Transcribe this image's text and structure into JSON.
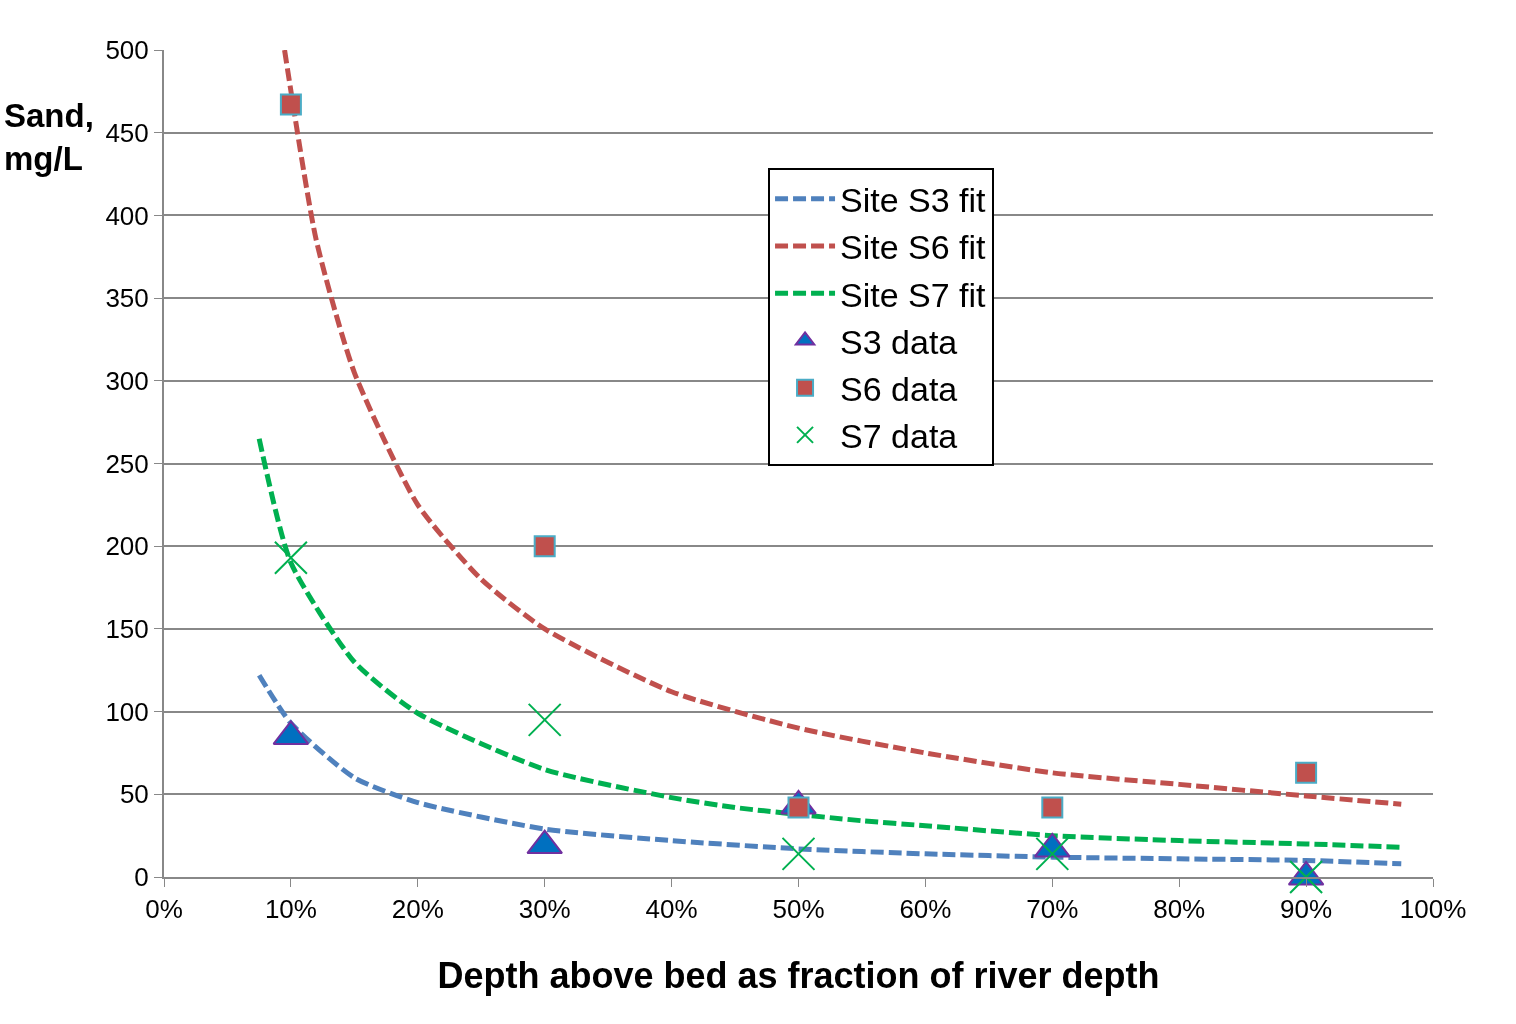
{
  "chart_data": {
    "type": "scatter",
    "xlabel": "Depth above bed as fraction of river depth",
    "ylabel": "Sand, mg/L",
    "x": [
      10,
      30,
      50,
      70,
      90
    ],
    "xlim": [
      0,
      100
    ],
    "xticks": [
      {
        "value": 0,
        "label": "0%"
      },
      {
        "value": 10,
        "label": "10%"
      },
      {
        "value": 20,
        "label": "20%"
      },
      {
        "value": 30,
        "label": "30%"
      },
      {
        "value": 40,
        "label": "40%"
      },
      {
        "value": 50,
        "label": "50%"
      },
      {
        "value": 60,
        "label": "60%"
      },
      {
        "value": 70,
        "label": "70%"
      },
      {
        "value": 80,
        "label": "80%"
      },
      {
        "value": 90,
        "label": "90%"
      },
      {
        "value": 100,
        "label": "100%"
      }
    ],
    "ylim": [
      0,
      500
    ],
    "yticks": [
      0,
      50,
      100,
      150,
      200,
      250,
      300,
      350,
      400,
      450,
      500
    ],
    "grid": "y",
    "legend": "top right",
    "series": [
      {
        "name": "Site S3 fit",
        "type": "line",
        "line_style": "dashed",
        "color": "#4f81bd",
        "x": [
          7.5,
          10,
          15,
          20,
          30,
          40,
          50,
          60,
          70,
          80,
          90,
          97.5
        ],
        "values": [
          122,
          93,
          60,
          45,
          29,
          22,
          17,
          14,
          12,
          11,
          10,
          8
        ]
      },
      {
        "name": "Site S6 fit",
        "type": "line",
        "line_style": "dashed",
        "color": "#c0504d",
        "x": [
          9.5,
          12,
          15,
          20,
          25,
          30,
          40,
          50,
          60,
          70,
          80,
          90,
          97.5
        ],
        "values": [
          500,
          385,
          305,
          225,
          180,
          150,
          112,
          90,
          75,
          63,
          56,
          49,
          44
        ]
      },
      {
        "name": "Site S7 fit",
        "type": "line",
        "line_style": "dashed",
        "color": "#00b050",
        "x": [
          7.5,
          10,
          15,
          20,
          30,
          40,
          45,
          55,
          60,
          70,
          80,
          90,
          97.5
        ],
        "values": [
          265,
          190,
          130,
          99,
          65,
          48,
          42,
          34,
          31,
          25,
          22,
          20,
          18
        ]
      },
      {
        "name": "S3 data",
        "marker": "triangle",
        "color": "#0070c0",
        "values": [
          85,
          19,
          43,
          17,
          0
        ]
      },
      {
        "name": "S6 data",
        "marker": "square",
        "color": "#c0504d",
        "values": [
          467,
          200,
          42,
          42,
          63
        ]
      },
      {
        "name": "S7 data",
        "marker": "cross",
        "color": "#00b050",
        "values": [
          193,
          95,
          14,
          14,
          0
        ]
      }
    ]
  }
}
